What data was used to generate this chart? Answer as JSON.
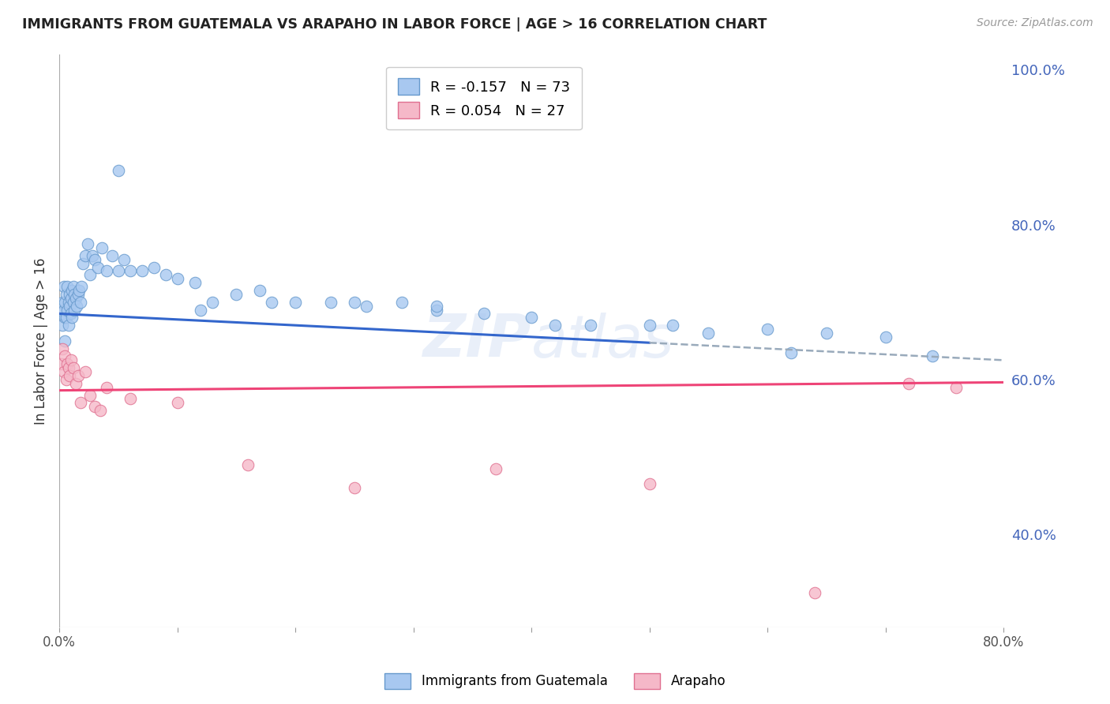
{
  "title": "IMMIGRANTS FROM GUATEMALA VS ARAPAHO IN LABOR FORCE | AGE > 16 CORRELATION CHART",
  "source": "Source: ZipAtlas.com",
  "ylabel": "In Labor Force | Age > 16",
  "watermark": "ZIPAtlas",
  "xlim": [
    0.0,
    0.8
  ],
  "ylim": [
    0.28,
    1.02
  ],
  "y_ticks_right": [
    0.4,
    0.6,
    0.8,
    1.0
  ],
  "y_tick_labels_right": [
    "40.0%",
    "60.0%",
    "80.0%",
    "100.0%"
  ],
  "guatemala_color": "#A8C8F0",
  "guatemala_edge": "#6699CC",
  "arapaho_color": "#F5B8C8",
  "arapaho_edge": "#E07090",
  "trend_blue": "#3366CC",
  "trend_pink": "#EE4477",
  "trend_dash_color": "#99AABB",
  "grid_color": "#CCCCCC",
  "background": "#FFFFFF",
  "title_color": "#222222",
  "axis_label_color": "#333333",
  "right_tick_color": "#4466BB",
  "guatemala_points_x": [
    0.002,
    0.003,
    0.003,
    0.004,
    0.004,
    0.005,
    0.005,
    0.005,
    0.006,
    0.006,
    0.007,
    0.007,
    0.008,
    0.008,
    0.009,
    0.009,
    0.01,
    0.01,
    0.011,
    0.011,
    0.012,
    0.012,
    0.013,
    0.013,
    0.014,
    0.015,
    0.016,
    0.017,
    0.018,
    0.019,
    0.02,
    0.022,
    0.024,
    0.026,
    0.028,
    0.03,
    0.033,
    0.036,
    0.04,
    0.045,
    0.05,
    0.055,
    0.06,
    0.07,
    0.08,
    0.09,
    0.1,
    0.115,
    0.13,
    0.15,
    0.17,
    0.2,
    0.23,
    0.26,
    0.29,
    0.32,
    0.36,
    0.4,
    0.45,
    0.5,
    0.55,
    0.6,
    0.65,
    0.7,
    0.05,
    0.12,
    0.18,
    0.25,
    0.32,
    0.42,
    0.52,
    0.62,
    0.74
  ],
  "guatemala_points_y": [
    0.685,
    0.7,
    0.67,
    0.69,
    0.72,
    0.68,
    0.7,
    0.65,
    0.71,
    0.68,
    0.72,
    0.69,
    0.7,
    0.67,
    0.71,
    0.695,
    0.685,
    0.705,
    0.715,
    0.68,
    0.7,
    0.72,
    0.69,
    0.71,
    0.705,
    0.695,
    0.71,
    0.715,
    0.7,
    0.72,
    0.75,
    0.76,
    0.775,
    0.735,
    0.76,
    0.755,
    0.745,
    0.77,
    0.74,
    0.76,
    0.74,
    0.755,
    0.74,
    0.74,
    0.745,
    0.735,
    0.73,
    0.725,
    0.7,
    0.71,
    0.715,
    0.7,
    0.7,
    0.695,
    0.7,
    0.69,
    0.685,
    0.68,
    0.67,
    0.67,
    0.66,
    0.665,
    0.66,
    0.655,
    0.87,
    0.69,
    0.7,
    0.7,
    0.695,
    0.67,
    0.67,
    0.635,
    0.63
  ],
  "arapaho_points_x": [
    0.002,
    0.003,
    0.004,
    0.005,
    0.006,
    0.007,
    0.008,
    0.009,
    0.01,
    0.012,
    0.014,
    0.016,
    0.018,
    0.022,
    0.026,
    0.03,
    0.035,
    0.04,
    0.06,
    0.1,
    0.16,
    0.25,
    0.37,
    0.5,
    0.64,
    0.72,
    0.76
  ],
  "arapaho_points_y": [
    0.62,
    0.64,
    0.61,
    0.63,
    0.6,
    0.62,
    0.615,
    0.605,
    0.625,
    0.615,
    0.595,
    0.605,
    0.57,
    0.61,
    0.58,
    0.565,
    0.56,
    0.59,
    0.575,
    0.57,
    0.49,
    0.46,
    0.485,
    0.465,
    0.325,
    0.595,
    0.59
  ],
  "marker_size": 110,
  "trend_solid_end": 0.5,
  "trend_dash_start": 0.5
}
